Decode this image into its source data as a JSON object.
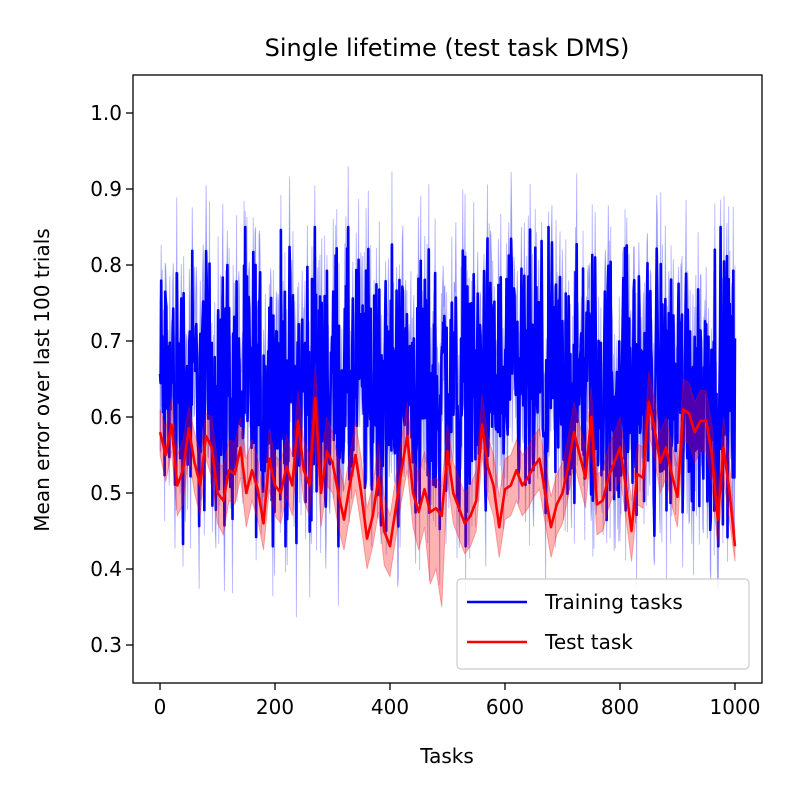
{
  "chart_data": {
    "type": "line",
    "title": "Single lifetime (test task DMS)",
    "xlabel": "Tasks",
    "ylabel": "Mean error over last 100 trials",
    "xlim": [
      -47,
      1047
    ],
    "ylim": [
      0.25,
      1.05
    ],
    "xticks": [
      {
        "value": 0,
        "label": "0"
      },
      {
        "value": 200,
        "label": "200"
      },
      {
        "value": 400,
        "label": "400"
      },
      {
        "value": 600,
        "label": "600"
      },
      {
        "value": 800,
        "label": "800"
      },
      {
        "value": 1000,
        "label": "1000"
      }
    ],
    "yticks": [
      {
        "value": 0.3,
        "label": "0.3"
      },
      {
        "value": 0.4,
        "label": "0.4"
      },
      {
        "value": 0.5,
        "label": "0.5"
      },
      {
        "value": 0.6,
        "label": "0.6"
      },
      {
        "value": 0.7,
        "label": "0.7"
      },
      {
        "value": 0.8,
        "label": "0.8"
      },
      {
        "value": 0.9,
        "label": "0.9"
      },
      {
        "value": 1.0,
        "label": "1.0"
      }
    ],
    "grid": false,
    "legend_position": "bottom-right",
    "series": [
      {
        "name": "Training tasks",
        "color": "#0000ff",
        "band_alpha": 0.3,
        "x_start": 0,
        "x_end": 1000,
        "n_points": 1000,
        "mean_level": 0.64,
        "mean_amplitude": 0.09,
        "mean_min": 0.43,
        "mean_max": 0.85,
        "band_halfwidth_range": [
          0.02,
          0.1
        ],
        "band_min": 0.28,
        "band_max": 0.94
      },
      {
        "name": "Test task",
        "color": "#ff0000",
        "band_alpha": 0.3,
        "x": [
          0,
          10,
          20,
          30,
          40,
          50,
          60,
          70,
          80,
          90,
          100,
          110,
          120,
          130,
          140,
          150,
          160,
          170,
          180,
          190,
          200,
          210,
          220,
          230,
          240,
          250,
          260,
          270,
          280,
          290,
          300,
          310,
          320,
          330,
          340,
          350,
          360,
          370,
          380,
          390,
          400,
          410,
          420,
          430,
          440,
          450,
          460,
          470,
          480,
          490,
          500,
          510,
          520,
          530,
          540,
          550,
          560,
          570,
          580,
          590,
          600,
          610,
          620,
          630,
          640,
          650,
          660,
          670,
          680,
          690,
          700,
          710,
          720,
          730,
          740,
          750,
          760,
          770,
          780,
          790,
          800,
          810,
          820,
          830,
          840,
          850,
          860,
          870,
          880,
          890,
          900,
          910,
          920,
          930,
          940,
          950,
          960,
          970,
          980,
          990,
          1000
        ],
        "mean": [
          0.58,
          0.55,
          0.59,
          0.51,
          0.53,
          0.585,
          0.54,
          0.51,
          0.575,
          0.56,
          0.5,
          0.49,
          0.53,
          0.525,
          0.56,
          0.5,
          0.53,
          0.505,
          0.46,
          0.545,
          0.51,
          0.5,
          0.535,
          0.51,
          0.595,
          0.53,
          0.51,
          0.625,
          0.5,
          0.555,
          0.54,
          0.5,
          0.465,
          0.51,
          0.55,
          0.5,
          0.44,
          0.47,
          0.52,
          0.45,
          0.43,
          0.48,
          0.53,
          0.575,
          0.5,
          0.475,
          0.505,
          0.475,
          0.48,
          0.47,
          0.555,
          0.5,
          0.48,
          0.46,
          0.47,
          0.49,
          0.59,
          0.535,
          0.51,
          0.455,
          0.505,
          0.51,
          0.53,
          0.51,
          0.52,
          0.535,
          0.545,
          0.5,
          0.455,
          0.485,
          0.5,
          0.535,
          0.58,
          0.55,
          0.52,
          0.6,
          0.485,
          0.49,
          0.52,
          0.54,
          0.56,
          0.51,
          0.45,
          0.525,
          0.52,
          0.62,
          0.585,
          0.54,
          0.56,
          0.525,
          0.495,
          0.61,
          0.605,
          0.58,
          0.595,
          0.595,
          0.55,
          0.465,
          0.56,
          0.505,
          0.43
        ],
        "lower": [
          0.55,
          0.515,
          0.555,
          0.47,
          0.485,
          0.55,
          0.5,
          0.47,
          0.545,
          0.52,
          0.46,
          0.445,
          0.49,
          0.485,
          0.52,
          0.455,
          0.49,
          0.465,
          0.425,
          0.505,
          0.47,
          0.46,
          0.495,
          0.47,
          0.555,
          0.49,
          0.47,
          0.58,
          0.455,
          0.51,
          0.5,
          0.455,
          0.425,
          0.47,
          0.505,
          0.455,
          0.4,
          0.43,
          0.475,
          0.405,
          0.39,
          0.44,
          0.49,
          0.53,
          0.455,
          0.425,
          0.455,
          0.38,
          0.4,
          0.35,
          0.52,
          0.46,
          0.44,
          0.42,
          0.43,
          0.45,
          0.55,
          0.495,
          0.47,
          0.415,
          0.465,
          0.47,
          0.49,
          0.47,
          0.48,
          0.495,
          0.505,
          0.46,
          0.415,
          0.445,
          0.46,
          0.495,
          0.54,
          0.51,
          0.48,
          0.56,
          0.445,
          0.45,
          0.48,
          0.5,
          0.52,
          0.47,
          0.41,
          0.485,
          0.48,
          0.58,
          0.545,
          0.5,
          0.52,
          0.485,
          0.455,
          0.57,
          0.565,
          0.54,
          0.555,
          0.555,
          0.51,
          0.43,
          0.52,
          0.465,
          0.41
        ],
        "upper": [
          0.61,
          0.585,
          0.625,
          0.55,
          0.57,
          0.615,
          0.58,
          0.55,
          0.605,
          0.6,
          0.54,
          0.535,
          0.57,
          0.565,
          0.6,
          0.545,
          0.57,
          0.545,
          0.495,
          0.585,
          0.55,
          0.54,
          0.575,
          0.55,
          0.635,
          0.57,
          0.55,
          0.67,
          0.545,
          0.6,
          0.58,
          0.545,
          0.505,
          0.55,
          0.595,
          0.545,
          0.48,
          0.51,
          0.565,
          0.495,
          0.47,
          0.52,
          0.57,
          0.62,
          0.545,
          0.525,
          0.555,
          0.515,
          0.52,
          0.51,
          0.59,
          0.54,
          0.52,
          0.5,
          0.51,
          0.53,
          0.63,
          0.575,
          0.55,
          0.495,
          0.545,
          0.55,
          0.57,
          0.55,
          0.56,
          0.575,
          0.585,
          0.54,
          0.495,
          0.525,
          0.54,
          0.575,
          0.62,
          0.59,
          0.56,
          0.64,
          0.525,
          0.53,
          0.56,
          0.58,
          0.6,
          0.55,
          0.49,
          0.565,
          0.56,
          0.66,
          0.625,
          0.58,
          0.6,
          0.565,
          0.535,
          0.65,
          0.645,
          0.62,
          0.635,
          0.635,
          0.59,
          0.5,
          0.6,
          0.545,
          0.45
        ]
      }
    ]
  }
}
